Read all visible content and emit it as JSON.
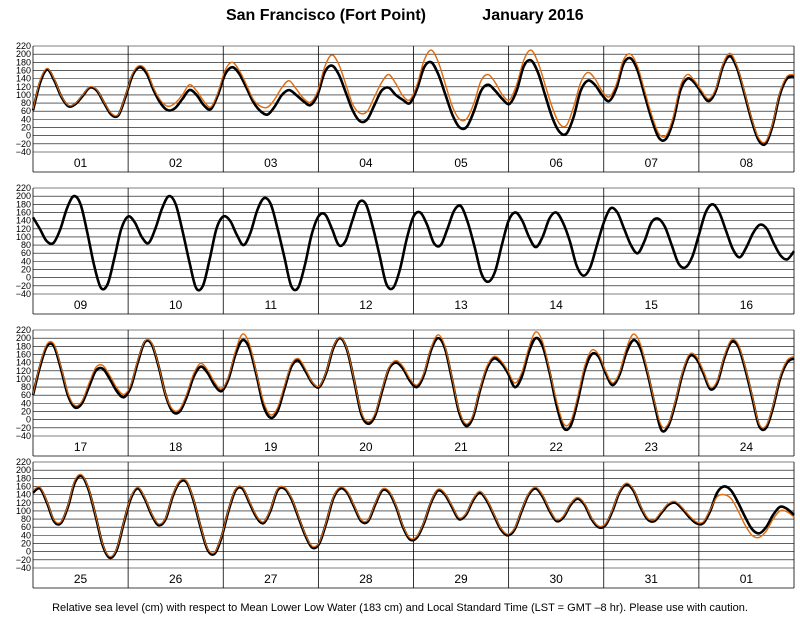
{
  "header": {
    "station": "San Francisco (Fort Point)",
    "period": "January   2016"
  },
  "footer_note": "Relative sea level (cm) with respect to Mean Lower Low Water (183 cm) and Local Standard Time (LST = GMT –8 hr). Please use with caution.",
  "colors": {
    "series_a": "#000000",
    "series_b": "#e06c10",
    "grid": "#000000"
  },
  "chart_data": {
    "type": "line",
    "title": "San Francisco (Fort Point)          January   2016",
    "ylabel": "",
    "y_ticks": [
      -40,
      -20,
      0,
      20,
      40,
      60,
      80,
      100,
      120,
      140,
      160,
      180,
      200,
      220
    ],
    "ylim": [
      -40,
      220
    ],
    "grid": true,
    "series": [
      {
        "color": "#000000"
      },
      {
        "color": "#e06c10"
      }
    ],
    "x_unit": "day",
    "sample_interval_days": 0.125,
    "panels": [
      {
        "days": [
          "01",
          "02",
          "03",
          "04",
          "05",
          "06",
          "07",
          "08"
        ],
        "black": [
          62,
          130,
          162,
          135,
          95,
          72,
          78,
          98,
          118,
          110,
          80,
          52,
          50,
          95,
          148,
          168,
          152,
          110,
          78,
          62,
          68,
          90,
          112,
          100,
          75,
          65,
          100,
          150,
          168,
          152,
          118,
          82,
          60,
          52,
          72,
          100,
          112,
          100,
          85,
          75,
          100,
          155,
          172,
          150,
          105,
          60,
          35,
          40,
          75,
          110,
          118,
          100,
          88,
          80,
          115,
          168,
          180,
          150,
          100,
          50,
          20,
          22,
          60,
          110,
          125,
          110,
          90,
          78,
          110,
          170,
          185,
          155,
          100,
          45,
          10,
          5,
          45,
          110,
          135,
          125,
          100,
          85,
          115,
          175,
          190,
          160,
          100,
          40,
          -5,
          -8,
          35,
          110,
          140,
          130,
          105,
          85,
          110,
          170,
          195,
          165,
          105,
          40,
          -10,
          -20,
          25,
          100,
          140,
          145
        ],
        "orange": [
          65,
          135,
          165,
          138,
          97,
          74,
          80,
          100,
          120,
          112,
          82,
          55,
          52,
          98,
          152,
          172,
          158,
          115,
          85,
          72,
          80,
          100,
          125,
          110,
          85,
          70,
          105,
          160,
          180,
          160,
          125,
          88,
          72,
          70,
          90,
          118,
          135,
          115,
          92,
          82,
          108,
          168,
          198,
          175,
          125,
          75,
          55,
          60,
          95,
          130,
          150,
          128,
          98,
          88,
          125,
          185,
          210,
          180,
          125,
          70,
          40,
          42,
          80,
          135,
          150,
          130,
          100,
          88,
          125,
          185,
          210,
          180,
          125,
          70,
          30,
          25,
          70,
          130,
          155,
          140,
          110,
          95,
          125,
          185,
          200,
          170,
          110,
          50,
          5,
          0,
          45,
          120,
          150,
          135,
          110,
          90,
          115,
          175,
          202,
          170,
          110,
          45,
          -5,
          -15,
          30,
          105,
          145,
          150
        ]
      },
      {
        "days": [
          "09",
          "10",
          "11",
          "12",
          "13",
          "14",
          "15",
          "16"
        ],
        "black": [
          148,
          120,
          90,
          85,
          118,
          170,
          200,
          180,
          110,
          30,
          -25,
          -15,
          50,
          120,
          150,
          135,
          100,
          85,
          120,
          170,
          200,
          180,
          115,
          40,
          -25,
          -20,
          45,
          120,
          150,
          140,
          105,
          80,
          110,
          165,
          195,
          180,
          120,
          50,
          -20,
          -25,
          30,
          105,
          150,
          155,
          120,
          80,
          90,
          140,
          185,
          180,
          125,
          55,
          -15,
          -25,
          20,
          95,
          150,
          160,
          130,
          85,
          80,
          120,
          165,
          175,
          135,
          75,
          10,
          -10,
          15,
          80,
          140,
          160,
          140,
          100,
          75,
          100,
          145,
          160,
          135,
          90,
          30,
          5,
          25,
          80,
          135,
          170,
          160,
          120,
          80,
          60,
          90,
          135,
          145,
          125,
          80,
          35,
          25,
          50,
          105,
          160,
          180,
          160,
          115,
          70,
          50,
          75,
          110,
          130,
          120,
          85,
          55,
          45,
          65
        ]
      },
      {
        "days": [
          "17",
          "18",
          "19",
          "20",
          "21",
          "22",
          "23",
          "24"
        ],
        "black": [
          60,
          130,
          180,
          180,
          125,
          60,
          30,
          40,
          80,
          120,
          125,
          100,
          70,
          55,
          80,
          140,
          190,
          185,
          130,
          60,
          20,
          20,
          55,
          105,
          130,
          115,
          85,
          70,
          100,
          160,
          195,
          175,
          110,
          35,
          5,
          20,
          75,
          130,
          145,
          120,
          90,
          80,
          115,
          175,
          200,
          170,
          95,
          15,
          -10,
          10,
          70,
          125,
          140,
          125,
          95,
          80,
          110,
          170,
          200,
          175,
          100,
          20,
          -15,
          5,
          70,
          125,
          150,
          140,
          115,
          80,
          105,
          165,
          200,
          180,
          115,
          35,
          -20,
          -15,
          45,
          120,
          160,
          155,
          115,
          85,
          110,
          165,
          195,
          175,
          115,
          40,
          -25,
          -15,
          40,
          110,
          155,
          150,
          115,
          75,
          90,
          150,
          190,
          180,
          125,
          55,
          -15,
          -20,
          30,
          100,
          140,
          150
        ],
        "orange": [
          62,
          135,
          185,
          185,
          130,
          65,
          35,
          45,
          88,
          128,
          133,
          108,
          78,
          62,
          85,
          145,
          192,
          188,
          132,
          62,
          25,
          25,
          62,
          112,
          138,
          122,
          92,
          75,
          105,
          168,
          210,
          185,
          115,
          45,
          12,
          28,
          82,
          135,
          150,
          125,
          92,
          82,
          118,
          178,
          202,
          172,
          98,
          20,
          -5,
          15,
          75,
          128,
          145,
          130,
          100,
          85,
          115,
          175,
          208,
          180,
          105,
          25,
          -10,
          10,
          75,
          130,
          155,
          145,
          120,
          90,
          115,
          175,
          215,
          190,
          120,
          45,
          -10,
          -5,
          55,
          130,
          170,
          160,
          120,
          90,
          115,
          175,
          210,
          185,
          120,
          45,
          -15,
          -10,
          45,
          115,
          160,
          155,
          120,
          80,
          95,
          155,
          195,
          185,
          130,
          60,
          -10,
          -15,
          35,
          105,
          145,
          155
        ]
      },
      {
        "days": [
          "25",
          "26",
          "27",
          "28",
          "29",
          "30",
          "31",
          "01"
        ],
        "black": [
          145,
          155,
          120,
          75,
          70,
          110,
          170,
          185,
          150,
          85,
          15,
          -15,
          5,
          70,
          130,
          155,
          130,
          90,
          65,
          80,
          135,
          170,
          170,
          125,
          60,
          5,
          -5,
          35,
          100,
          150,
          155,
          120,
          85,
          70,
          100,
          150,
          155,
          130,
          85,
          40,
          10,
          20,
          70,
          130,
          155,
          145,
          110,
          75,
          75,
          115,
          150,
          145,
          110,
          60,
          30,
          35,
          70,
          120,
          150,
          140,
          110,
          80,
          90,
          125,
          145,
          125,
          90,
          55,
          40,
          55,
          100,
          140,
          155,
          135,
          100,
          75,
          85,
          115,
          130,
          115,
          80,
          60,
          65,
          100,
          145,
          165,
          150,
          110,
          80,
          75,
          95,
          115,
          120,
          105,
          85,
          70,
          70,
          100,
          145,
          160,
          150,
          120,
          85,
          55,
          45,
          60,
          90,
          110,
          105,
          90
        ],
        "orange": [
          150,
          158,
          123,
          78,
          73,
          113,
          175,
          188,
          153,
          88,
          18,
          -12,
          8,
          73,
          133,
          158,
          133,
          93,
          68,
          83,
          138,
          173,
          173,
          128,
          63,
          8,
          -2,
          38,
          103,
          153,
          158,
          123,
          88,
          73,
          103,
          153,
          158,
          133,
          88,
          43,
          13,
          23,
          73,
          133,
          158,
          148,
          113,
          78,
          78,
          118,
          153,
          148,
          113,
          63,
          33,
          38,
          73,
          123,
          153,
          143,
          113,
          83,
          93,
          128,
          148,
          128,
          93,
          58,
          43,
          58,
          103,
          143,
          158,
          138,
          103,
          78,
          88,
          118,
          133,
          118,
          83,
          63,
          68,
          103,
          148,
          168,
          153,
          113,
          83,
          78,
          98,
          118,
          123,
          108,
          88,
          73,
          73,
          103,
          135,
          140,
          130,
          100,
          65,
          40,
          35,
          50,
          80,
          100,
          98,
          85
        ]
      }
    ]
  }
}
